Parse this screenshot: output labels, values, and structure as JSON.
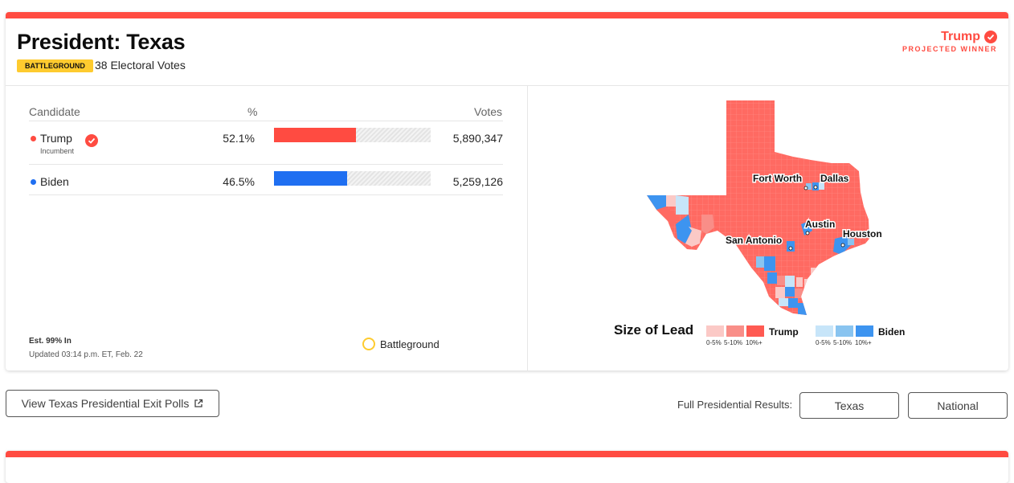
{
  "race": {
    "title": "President: Texas",
    "badge": "BATTLEGROUND",
    "electoral_votes": "38 Electoral Votes",
    "winner_name": "Trump",
    "winner_status": "PROJECTED WINNER"
  },
  "table": {
    "headers": {
      "candidate": "Candidate",
      "percent": "%",
      "votes": "Votes"
    },
    "rows": [
      {
        "name": "Trump",
        "subtitle": "Incumbent",
        "percent": "52.1%",
        "percent_value": 52.1,
        "votes": "5,890,347",
        "color": "#ff4b41",
        "winner": true
      },
      {
        "name": "Biden",
        "subtitle": "",
        "percent": "46.5%",
        "percent_value": 46.5,
        "votes": "5,259,126",
        "color": "#1f6ff1",
        "winner": false
      }
    ]
  },
  "footer": {
    "estimate": "Est. 99% In",
    "updated": "Updated 03:14 p.m. ET, Feb. 22",
    "battleground_legend": "Battleground"
  },
  "map": {
    "cities": [
      "Fort Worth",
      "Dallas",
      "Austin",
      "San Antonio",
      "Houston"
    ],
    "legend_title": "Size of Lead",
    "ranges": [
      "0-5%",
      "5-10%",
      "10%+"
    ],
    "trump_label": "Trump",
    "biden_label": "Biden",
    "colors": {
      "trump": [
        "#fbc9c6",
        "#f98e88",
        "#ff5a52"
      ],
      "biden": [
        "#c7e5f9",
        "#89c4f0",
        "#3d94f0"
      ]
    }
  },
  "actions": {
    "exit_polls": "View Texas Presidential Exit Polls",
    "full_results_label": "Full Presidential Results:",
    "texas": "Texas",
    "national": "National"
  },
  "colors": {
    "accent": "#ff4b41",
    "battleground": "#fecb2f",
    "biden": "#1f6ff1"
  }
}
